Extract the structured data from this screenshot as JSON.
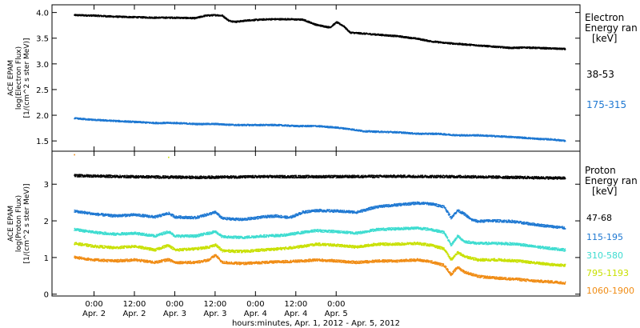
{
  "chart_data": [
    {
      "type": "scatter",
      "ylabel_lines": [
        "ACE EPAM",
        "log(Electron Flux)",
        "[1/(cm^2 s ster MeV)]"
      ],
      "ylim": [
        1.3,
        4.15
      ],
      "yticks": [
        "1.5",
        "2.0",
        "2.5",
        "3.0",
        "3.5",
        "4.0"
      ],
      "legend_title": [
        "Electron",
        "Energy ran",
        "[keV]"
      ],
      "legend_placement": "right",
      "series": [
        {
          "name": "38-53",
          "color": "#000000",
          "points": [
            [
              -6,
              3.96
            ],
            [
              0,
              3.95
            ],
            [
              6,
              3.93
            ],
            [
              12,
              3.92
            ],
            [
              18,
              3.91
            ],
            [
              24,
              3.91
            ],
            [
              30,
              3.9
            ],
            [
              33,
              3.95
            ],
            [
              36,
              3.96
            ],
            [
              38,
              3.95
            ],
            [
              40,
              3.85
            ],
            [
              42,
              3.83
            ],
            [
              46,
              3.86
            ],
            [
              52,
              3.88
            ],
            [
              58,
              3.88
            ],
            [
              62,
              3.87
            ],
            [
              64,
              3.82
            ],
            [
              66,
              3.77
            ],
            [
              70,
              3.72
            ],
            [
              72,
              3.82
            ],
            [
              74,
              3.75
            ],
            [
              76,
              3.62
            ],
            [
              80,
              3.6
            ],
            [
              84,
              3.58
            ],
            [
              90,
              3.55
            ],
            [
              96,
              3.5
            ],
            [
              100,
              3.45
            ],
            [
              104,
              3.42
            ],
            [
              108,
              3.4
            ],
            [
              112,
              3.38
            ],
            [
              116,
              3.36
            ],
            [
              120,
              3.34
            ],
            [
              124,
              3.32
            ],
            [
              128,
              3.33
            ],
            [
              132,
              3.32
            ],
            [
              136,
              3.31
            ],
            [
              140,
              3.3
            ]
          ]
        },
        {
          "name": "175-315",
          "color": "#1e78d2",
          "points": [
            [
              -6,
              1.95
            ],
            [
              0,
              1.92
            ],
            [
              6,
              1.9
            ],
            [
              12,
              1.88
            ],
            [
              18,
              1.86
            ],
            [
              24,
              1.86
            ],
            [
              30,
              1.84
            ],
            [
              36,
              1.84
            ],
            [
              42,
              1.82
            ],
            [
              48,
              1.82
            ],
            [
              54,
              1.82
            ],
            [
              60,
              1.8
            ],
            [
              66,
              1.8
            ],
            [
              72,
              1.77
            ],
            [
              76,
              1.74
            ],
            [
              80,
              1.7
            ],
            [
              84,
              1.69
            ],
            [
              90,
              1.68
            ],
            [
              96,
              1.65
            ],
            [
              102,
              1.65
            ],
            [
              108,
              1.62
            ],
            [
              114,
              1.62
            ],
            [
              120,
              1.6
            ],
            [
              126,
              1.58
            ],
            [
              132,
              1.55
            ],
            [
              136,
              1.54
            ],
            [
              140,
              1.51
            ]
          ]
        }
      ]
    },
    {
      "type": "scatter",
      "ylabel_lines": [
        "ACE EPAM",
        "log(Proton Flux)",
        "[1/(cm^2 s ster MeV)]"
      ],
      "ylim": [
        -0.05,
        3.9
      ],
      "yticks": [
        "0",
        "1",
        "2",
        "3"
      ],
      "legend_title": [
        "Proton",
        "Energy ran",
        "[keV]"
      ],
      "legend_placement": "right",
      "series": [
        {
          "name": "47-68",
          "color": "#000000",
          "points": [
            [
              -6,
              3.25
            ],
            [
              10,
              3.22
            ],
            [
              30,
              3.2
            ],
            [
              50,
              3.22
            ],
            [
              70,
              3.22
            ],
            [
              90,
              3.23
            ],
            [
              110,
              3.22
            ],
            [
              125,
              3.2
            ],
            [
              140,
              3.18
            ]
          ]
        },
        {
          "name": "115-195",
          "color": "#1e78d2",
          "points": [
            [
              -6,
              2.28
            ],
            [
              0,
              2.2
            ],
            [
              6,
              2.15
            ],
            [
              12,
              2.18
            ],
            [
              18,
              2.12
            ],
            [
              22,
              2.22
            ],
            [
              24,
              2.12
            ],
            [
              30,
              2.1
            ],
            [
              34,
              2.2
            ],
            [
              36,
              2.25
            ],
            [
              38,
              2.08
            ],
            [
              44,
              2.05
            ],
            [
              50,
              2.12
            ],
            [
              54,
              2.15
            ],
            [
              58,
              2.1
            ],
            [
              62,
              2.25
            ],
            [
              66,
              2.3
            ],
            [
              72,
              2.28
            ],
            [
              78,
              2.25
            ],
            [
              84,
              2.4
            ],
            [
              90,
              2.45
            ],
            [
              96,
              2.5
            ],
            [
              100,
              2.48
            ],
            [
              104,
              2.4
            ],
            [
              106,
              2.1
            ],
            [
              108,
              2.3
            ],
            [
              110,
              2.2
            ],
            [
              112,
              2.05
            ],
            [
              114,
              2.0
            ],
            [
              118,
              2.02
            ],
            [
              124,
              2.0
            ],
            [
              128,
              1.95
            ],
            [
              134,
              1.88
            ],
            [
              140,
              1.82
            ]
          ]
        },
        {
          "name": "310-580",
          "color": "#3ddcd0",
          "points": [
            [
              -6,
              1.78
            ],
            [
              0,
              1.7
            ],
            [
              6,
              1.65
            ],
            [
              12,
              1.68
            ],
            [
              18,
              1.6
            ],
            [
              22,
              1.72
            ],
            [
              24,
              1.6
            ],
            [
              30,
              1.6
            ],
            [
              34,
              1.68
            ],
            [
              36,
              1.72
            ],
            [
              38,
              1.58
            ],
            [
              44,
              1.56
            ],
            [
              50,
              1.6
            ],
            [
              56,
              1.62
            ],
            [
              62,
              1.7
            ],
            [
              66,
              1.75
            ],
            [
              72,
              1.72
            ],
            [
              78,
              1.68
            ],
            [
              84,
              1.78
            ],
            [
              90,
              1.8
            ],
            [
              96,
              1.82
            ],
            [
              100,
              1.78
            ],
            [
              104,
              1.7
            ],
            [
              106,
              1.35
            ],
            [
              108,
              1.6
            ],
            [
              110,
              1.45
            ],
            [
              114,
              1.4
            ],
            [
              120,
              1.4
            ],
            [
              126,
              1.38
            ],
            [
              130,
              1.32
            ],
            [
              136,
              1.26
            ],
            [
              140,
              1.22
            ]
          ]
        },
        {
          "name": "795-1193",
          "color": "#c8e000",
          "points": [
            [
              -6,
              1.4
            ],
            [
              0,
              1.32
            ],
            [
              6,
              1.28
            ],
            [
              12,
              1.32
            ],
            [
              18,
              1.22
            ],
            [
              22,
              1.35
            ],
            [
              24,
              1.22
            ],
            [
              30,
              1.25
            ],
            [
              34,
              1.3
            ],
            [
              36,
              1.36
            ],
            [
              38,
              1.2
            ],
            [
              44,
              1.18
            ],
            [
              50,
              1.22
            ],
            [
              56,
              1.26
            ],
            [
              62,
              1.32
            ],
            [
              66,
              1.38
            ],
            [
              72,
              1.35
            ],
            [
              78,
              1.3
            ],
            [
              84,
              1.38
            ],
            [
              90,
              1.38
            ],
            [
              96,
              1.4
            ],
            [
              100,
              1.35
            ],
            [
              104,
              1.25
            ],
            [
              106,
              0.95
            ],
            [
              108,
              1.15
            ],
            [
              110,
              1.05
            ],
            [
              114,
              0.95
            ],
            [
              120,
              0.95
            ],
            [
              126,
              0.92
            ],
            [
              130,
              0.88
            ],
            [
              136,
              0.82
            ],
            [
              140,
              0.8
            ]
          ]
        },
        {
          "name": "1060-1900",
          "color": "#f08c14",
          "points": [
            [
              -6,
              1.02
            ],
            [
              0,
              0.95
            ],
            [
              6,
              0.92
            ],
            [
              12,
              0.95
            ],
            [
              18,
              0.88
            ],
            [
              22,
              0.96
            ],
            [
              24,
              0.88
            ],
            [
              30,
              0.88
            ],
            [
              34,
              0.95
            ],
            [
              36,
              1.08
            ],
            [
              38,
              0.88
            ],
            [
              44,
              0.85
            ],
            [
              50,
              0.88
            ],
            [
              56,
              0.9
            ],
            [
              62,
              0.92
            ],
            [
              66,
              0.95
            ],
            [
              72,
              0.92
            ],
            [
              78,
              0.88
            ],
            [
              84,
              0.92
            ],
            [
              90,
              0.92
            ],
            [
              96,
              0.95
            ],
            [
              100,
              0.9
            ],
            [
              104,
              0.8
            ],
            [
              106,
              0.55
            ],
            [
              108,
              0.75
            ],
            [
              110,
              0.62
            ],
            [
              114,
              0.5
            ],
            [
              120,
              0.45
            ],
            [
              126,
              0.42
            ],
            [
              130,
              0.38
            ],
            [
              136,
              0.35
            ],
            [
              140,
              0.32
            ]
          ]
        }
      ],
      "outliers": [
        {
          "x": -6,
          "y": 3.82,
          "color": "#f08c14"
        },
        {
          "x": 22,
          "y": 3.75,
          "color": "#c8e000"
        }
      ]
    }
  ],
  "x_axis": {
    "xlim": [
      -12.5,
      144.5
    ],
    "ticks": [
      {
        "x": 0,
        "time": "0:00",
        "date": "Apr. 2"
      },
      {
        "x": 12,
        "time": "12:00",
        "date": "Apr. 2"
      },
      {
        "x": 24,
        "time": "0:00",
        "date": "Apr. 3"
      },
      {
        "x": 36,
        "time": "12:00",
        "date": "Apr. 3"
      },
      {
        "x": 48,
        "time": "0:00",
        "date": "Apr. 4"
      },
      {
        "x": 60,
        "time": "12:00",
        "date": "Apr. 4"
      },
      {
        "x": 72,
        "time": "0:00",
        "date": "Apr. 5"
      }
    ],
    "label": "hours:minutes, Apr.  1, 2012 - Apr.  5, 2012"
  }
}
